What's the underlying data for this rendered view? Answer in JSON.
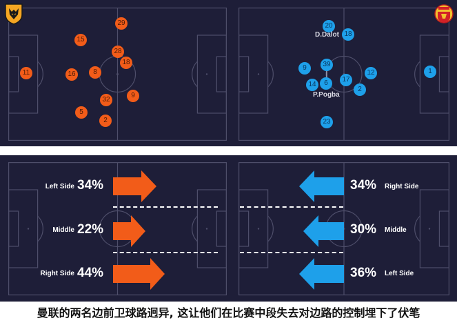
{
  "colors": {
    "background": "#1e1e38",
    "pitch_lines": "#4e4e6a",
    "wolves": "#f25c19",
    "united": "#1ea0ea",
    "divider": "#ffffff"
  },
  "top": {
    "left_team": {
      "crest": "wolf-crest-icon",
      "players": [
        {
          "number": "29"
        },
        {
          "number": "15"
        },
        {
          "number": "28"
        },
        {
          "number": "18"
        },
        {
          "number": "11"
        },
        {
          "number": "16"
        },
        {
          "number": "8"
        },
        {
          "number": "9"
        },
        {
          "number": "32"
        },
        {
          "number": "5"
        },
        {
          "number": "2"
        }
      ]
    },
    "right_team": {
      "crest": "devil-crest-icon",
      "players": [
        {
          "number": "20"
        },
        {
          "number": "18"
        },
        {
          "number": "39"
        },
        {
          "number": "9"
        },
        {
          "number": "12"
        },
        {
          "number": "1"
        },
        {
          "number": "17"
        },
        {
          "number": "6"
        },
        {
          "number": "14"
        },
        {
          "number": "2"
        },
        {
          "number": "23"
        }
      ],
      "names": [
        "D.Dalot",
        "P.Pogba"
      ]
    }
  },
  "bottom": {
    "left_zones": [
      {
        "label": "Left Side",
        "pct": "34%"
      },
      {
        "label": "Middle",
        "pct": "22%"
      },
      {
        "label": "Right Side",
        "pct": "44%"
      }
    ],
    "right_zones": [
      {
        "label": "Right Side",
        "pct": "34%"
      },
      {
        "label": "Middle",
        "pct": "30%"
      },
      {
        "label": "Left Side",
        "pct": "36%"
      }
    ]
  },
  "caption": "曼联的两名边前卫球路迥异, 这让他们在比赛中段失去对边路的控制埋下了伏笔"
}
